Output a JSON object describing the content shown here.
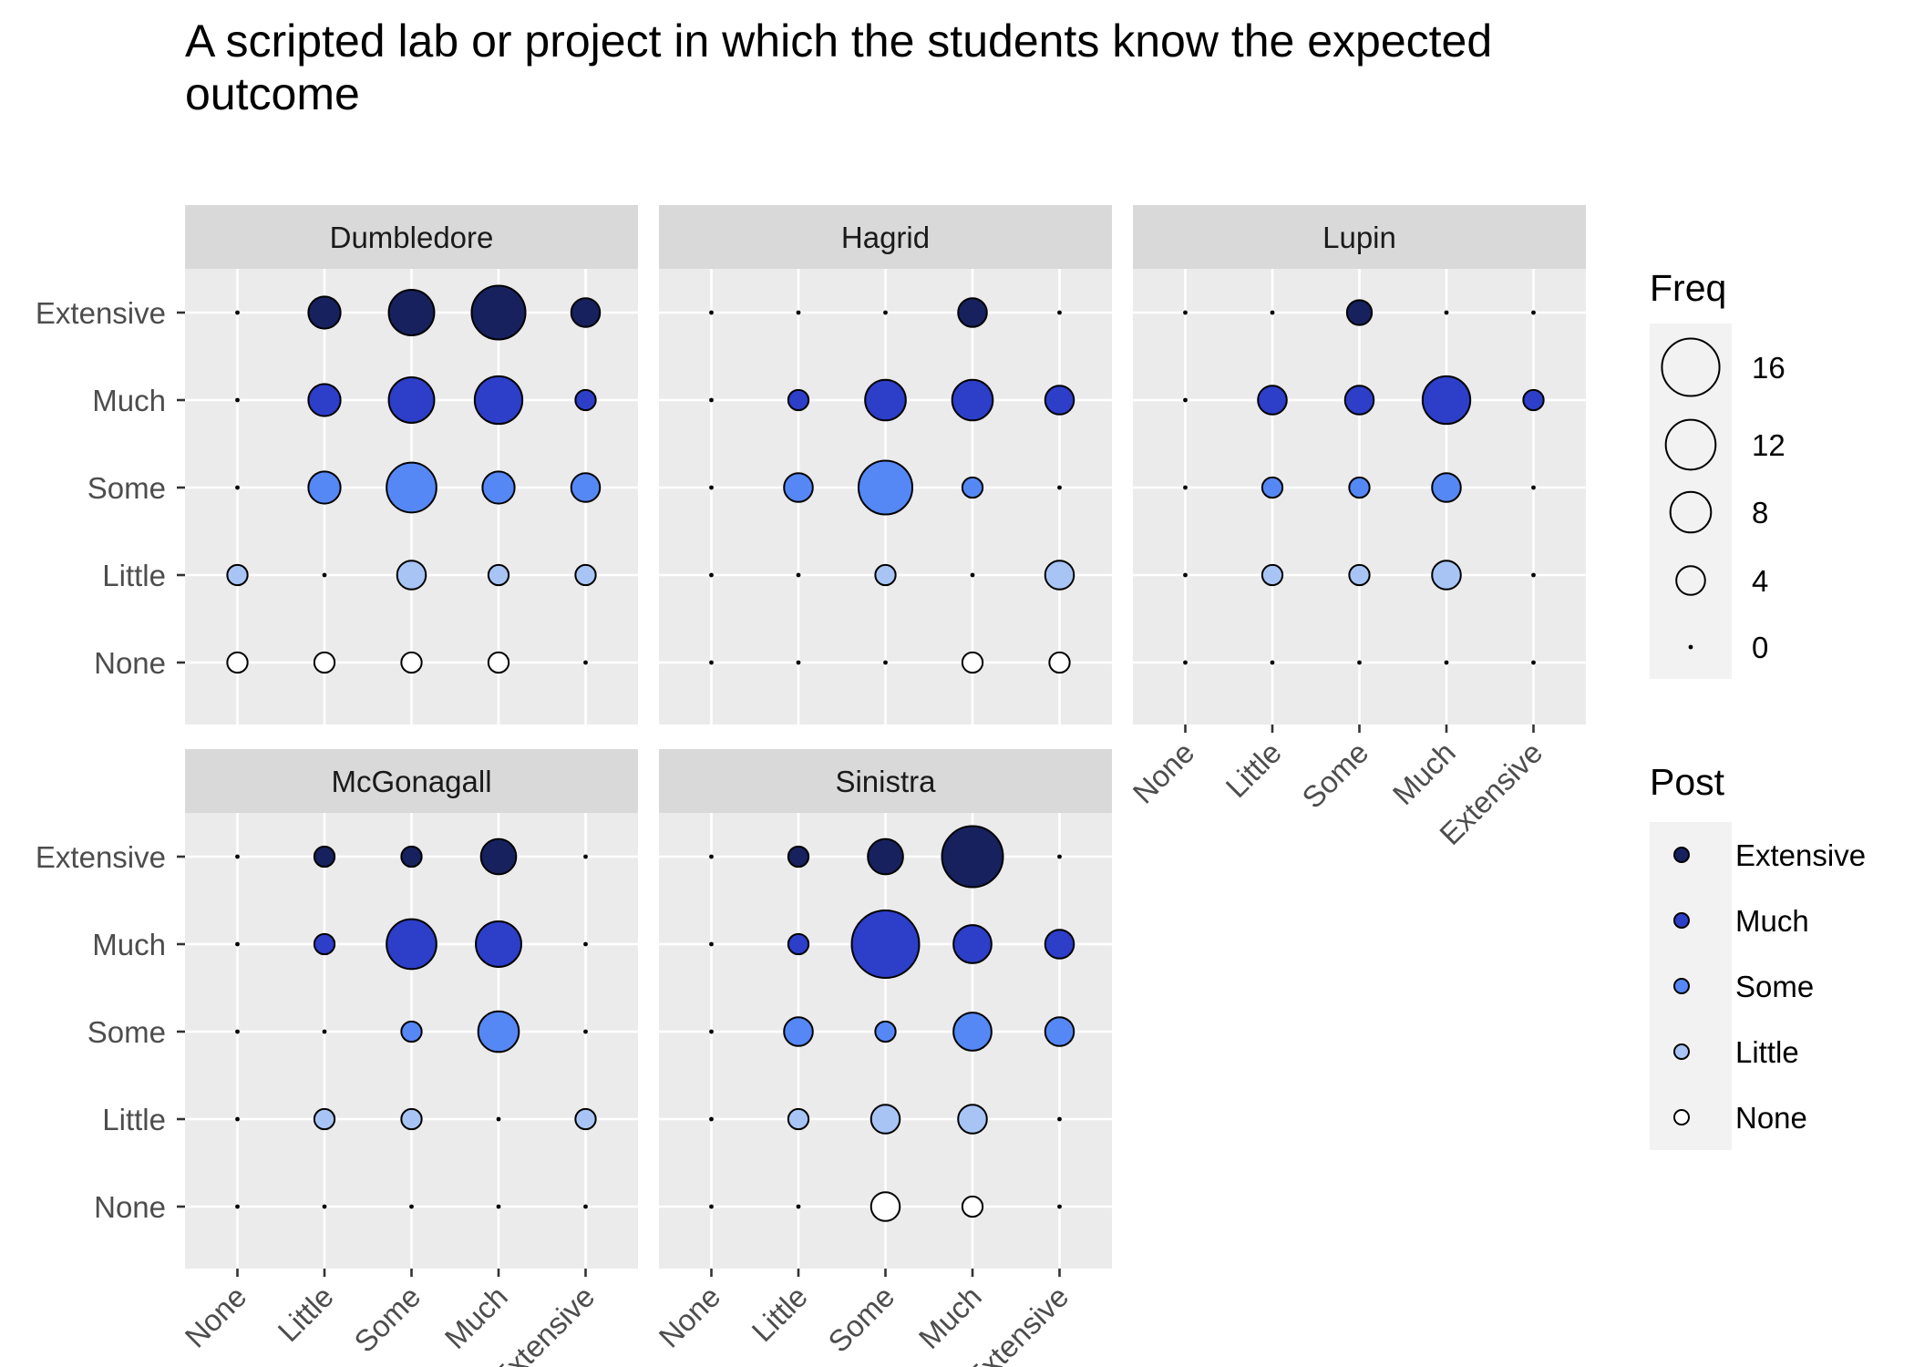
{
  "chart_data": {
    "type": "scatter",
    "title": "A scripted lab or project in which the students know the expected outcome",
    "title_lines": [
      "A scripted lab or project in which the students know the expected",
      "outcome"
    ],
    "levels": [
      "None",
      "Little",
      "Some",
      "Much",
      "Extensive"
    ],
    "xlabel": "",
    "ylabel": "",
    "size_variable": "Freq",
    "color_variable": "Post",
    "colors": {
      "None": "#ffffff",
      "Little": "#a8c4f5",
      "Some": "#5588f5",
      "Much": "#2d3ec8",
      "Extensive": "#17215e"
    },
    "grid": true,
    "legend_position": "right",
    "legends": {
      "size": {
        "title": "Freq",
        "breaks": [
          16,
          12,
          8,
          4,
          0
        ],
        "labels": [
          "16",
          "12",
          "8",
          "4",
          "0"
        ]
      },
      "color": {
        "title": "Post",
        "entries": [
          "Extensive",
          "Much",
          "Some",
          "Little",
          "None"
        ]
      }
    },
    "panels": [
      {
        "name": "Dumbledore",
        "points": [
          {
            "x": "None",
            "y": "Extensive",
            "freq": 0
          },
          {
            "x": "Little",
            "y": "Extensive",
            "freq": 5
          },
          {
            "x": "Some",
            "y": "Extensive",
            "freq": 10
          },
          {
            "x": "Much",
            "y": "Extensive",
            "freq": 14
          },
          {
            "x": "Extensive",
            "y": "Extensive",
            "freq": 4
          },
          {
            "x": "None",
            "y": "Much",
            "freq": 0
          },
          {
            "x": "Little",
            "y": "Much",
            "freq": 5
          },
          {
            "x": "Some",
            "y": "Much",
            "freq": 10
          },
          {
            "x": "Much",
            "y": "Much",
            "freq": 11
          },
          {
            "x": "Extensive",
            "y": "Much",
            "freq": 2
          },
          {
            "x": "None",
            "y": "Some",
            "freq": 0
          },
          {
            "x": "Little",
            "y": "Some",
            "freq": 5
          },
          {
            "x": "Some",
            "y": "Some",
            "freq": 12
          },
          {
            "x": "Much",
            "y": "Some",
            "freq": 5
          },
          {
            "x": "Extensive",
            "y": "Some",
            "freq": 4
          },
          {
            "x": "None",
            "y": "Little",
            "freq": 2
          },
          {
            "x": "Little",
            "y": "Little",
            "freq": 0
          },
          {
            "x": "Some",
            "y": "Little",
            "freq": 4
          },
          {
            "x": "Much",
            "y": "Little",
            "freq": 2
          },
          {
            "x": "Extensive",
            "y": "Little",
            "freq": 2
          },
          {
            "x": "None",
            "y": "None",
            "freq": 2
          },
          {
            "x": "Little",
            "y": "None",
            "freq": 2
          },
          {
            "x": "Some",
            "y": "None",
            "freq": 2
          },
          {
            "x": "Much",
            "y": "None",
            "freq": 2
          },
          {
            "x": "Extensive",
            "y": "None",
            "freq": 0
          }
        ]
      },
      {
        "name": "Hagrid",
        "points": [
          {
            "x": "None",
            "y": "Extensive",
            "freq": 0
          },
          {
            "x": "Little",
            "y": "Extensive",
            "freq": 0
          },
          {
            "x": "Some",
            "y": "Extensive",
            "freq": 0
          },
          {
            "x": "Much",
            "y": "Extensive",
            "freq": 4
          },
          {
            "x": "Extensive",
            "y": "Extensive",
            "freq": 0
          },
          {
            "x": "None",
            "y": "Much",
            "freq": 0
          },
          {
            "x": "Little",
            "y": "Much",
            "freq": 2
          },
          {
            "x": "Some",
            "y": "Much",
            "freq": 8
          },
          {
            "x": "Much",
            "y": "Much",
            "freq": 8
          },
          {
            "x": "Extensive",
            "y": "Much",
            "freq": 4
          },
          {
            "x": "None",
            "y": "Some",
            "freq": 0
          },
          {
            "x": "Little",
            "y": "Some",
            "freq": 4
          },
          {
            "x": "Some",
            "y": "Some",
            "freq": 14
          },
          {
            "x": "Much",
            "y": "Some",
            "freq": 2
          },
          {
            "x": "Extensive",
            "y": "Some",
            "freq": 0
          },
          {
            "x": "None",
            "y": "Little",
            "freq": 0
          },
          {
            "x": "Little",
            "y": "Little",
            "freq": 0
          },
          {
            "x": "Some",
            "y": "Little",
            "freq": 2
          },
          {
            "x": "Much",
            "y": "Little",
            "freq": 0
          },
          {
            "x": "Extensive",
            "y": "Little",
            "freq": 4
          },
          {
            "x": "None",
            "y": "None",
            "freq": 0
          },
          {
            "x": "Little",
            "y": "None",
            "freq": 0
          },
          {
            "x": "Some",
            "y": "None",
            "freq": 0
          },
          {
            "x": "Much",
            "y": "None",
            "freq": 2
          },
          {
            "x": "Extensive",
            "y": "None",
            "freq": 2
          }
        ]
      },
      {
        "name": "Lupin",
        "points": [
          {
            "x": "None",
            "y": "Extensive",
            "freq": 0
          },
          {
            "x": "Little",
            "y": "Extensive",
            "freq": 0
          },
          {
            "x": "Some",
            "y": "Extensive",
            "freq": 3
          },
          {
            "x": "Much",
            "y": "Extensive",
            "freq": 0
          },
          {
            "x": "Extensive",
            "y": "Extensive",
            "freq": 0
          },
          {
            "x": "None",
            "y": "Much",
            "freq": 0
          },
          {
            "x": "Little",
            "y": "Much",
            "freq": 4
          },
          {
            "x": "Some",
            "y": "Much",
            "freq": 4
          },
          {
            "x": "Much",
            "y": "Much",
            "freq": 11
          },
          {
            "x": "Extensive",
            "y": "Much",
            "freq": 2
          },
          {
            "x": "None",
            "y": "Some",
            "freq": 0
          },
          {
            "x": "Little",
            "y": "Some",
            "freq": 2
          },
          {
            "x": "Some",
            "y": "Some",
            "freq": 2
          },
          {
            "x": "Much",
            "y": "Some",
            "freq": 4
          },
          {
            "x": "Extensive",
            "y": "Some",
            "freq": 0
          },
          {
            "x": "None",
            "y": "Little",
            "freq": 0
          },
          {
            "x": "Little",
            "y": "Little",
            "freq": 2
          },
          {
            "x": "Some",
            "y": "Little",
            "freq": 2
          },
          {
            "x": "Much",
            "y": "Little",
            "freq": 4
          },
          {
            "x": "Extensive",
            "y": "Little",
            "freq": 0
          },
          {
            "x": "None",
            "y": "None",
            "freq": 0
          },
          {
            "x": "Little",
            "y": "None",
            "freq": 0
          },
          {
            "x": "Some",
            "y": "None",
            "freq": 0
          },
          {
            "x": "Much",
            "y": "None",
            "freq": 0
          },
          {
            "x": "Extensive",
            "y": "None",
            "freq": 0
          }
        ]
      },
      {
        "name": "McGonagall",
        "points": [
          {
            "x": "None",
            "y": "Extensive",
            "freq": 0
          },
          {
            "x": "Little",
            "y": "Extensive",
            "freq": 2
          },
          {
            "x": "Some",
            "y": "Extensive",
            "freq": 2
          },
          {
            "x": "Much",
            "y": "Extensive",
            "freq": 6
          },
          {
            "x": "Extensive",
            "y": "Extensive",
            "freq": 0
          },
          {
            "x": "None",
            "y": "Much",
            "freq": 0
          },
          {
            "x": "Little",
            "y": "Much",
            "freq": 2
          },
          {
            "x": "Some",
            "y": "Much",
            "freq": 12
          },
          {
            "x": "Much",
            "y": "Much",
            "freq": 10
          },
          {
            "x": "Extensive",
            "y": "Much",
            "freq": 0
          },
          {
            "x": "None",
            "y": "Some",
            "freq": 0
          },
          {
            "x": "Little",
            "y": "Some",
            "freq": 0
          },
          {
            "x": "Some",
            "y": "Some",
            "freq": 2
          },
          {
            "x": "Much",
            "y": "Some",
            "freq": 8
          },
          {
            "x": "Extensive",
            "y": "Some",
            "freq": 0
          },
          {
            "x": "None",
            "y": "Little",
            "freq": 0
          },
          {
            "x": "Little",
            "y": "Little",
            "freq": 2
          },
          {
            "x": "Some",
            "y": "Little",
            "freq": 2
          },
          {
            "x": "Much",
            "y": "Little",
            "freq": 0
          },
          {
            "x": "Extensive",
            "y": "Little",
            "freq": 2
          },
          {
            "x": "None",
            "y": "None",
            "freq": 0
          },
          {
            "x": "Little",
            "y": "None",
            "freq": 0
          },
          {
            "x": "Some",
            "y": "None",
            "freq": 0
          },
          {
            "x": "Much",
            "y": "None",
            "freq": 0
          },
          {
            "x": "Extensive",
            "y": "None",
            "freq": 0
          }
        ]
      },
      {
        "name": "Sinistra",
        "points": [
          {
            "x": "None",
            "y": "Extensive",
            "freq": 0
          },
          {
            "x": "Little",
            "y": "Extensive",
            "freq": 2
          },
          {
            "x": "Some",
            "y": "Extensive",
            "freq": 6
          },
          {
            "x": "Much",
            "y": "Extensive",
            "freq": 18
          },
          {
            "x": "Extensive",
            "y": "Extensive",
            "freq": 0
          },
          {
            "x": "None",
            "y": "Much",
            "freq": 0
          },
          {
            "x": "Little",
            "y": "Much",
            "freq": 2
          },
          {
            "x": "Some",
            "y": "Much",
            "freq": 22
          },
          {
            "x": "Much",
            "y": "Much",
            "freq": 7
          },
          {
            "x": "Extensive",
            "y": "Much",
            "freq": 4
          },
          {
            "x": "None",
            "y": "Some",
            "freq": 0
          },
          {
            "x": "Little",
            "y": "Some",
            "freq": 4
          },
          {
            "x": "Some",
            "y": "Some",
            "freq": 2
          },
          {
            "x": "Much",
            "y": "Some",
            "freq": 7
          },
          {
            "x": "Extensive",
            "y": "Some",
            "freq": 4
          },
          {
            "x": "None",
            "y": "Little",
            "freq": 0
          },
          {
            "x": "Little",
            "y": "Little",
            "freq": 2
          },
          {
            "x": "Some",
            "y": "Little",
            "freq": 4
          },
          {
            "x": "Much",
            "y": "Little",
            "freq": 4
          },
          {
            "x": "Extensive",
            "y": "Little",
            "freq": 0
          },
          {
            "x": "None",
            "y": "None",
            "freq": 0
          },
          {
            "x": "Little",
            "y": "None",
            "freq": 0
          },
          {
            "x": "Some",
            "y": "None",
            "freq": 4
          },
          {
            "x": "Much",
            "y": "None",
            "freq": 2
          },
          {
            "x": "Extensive",
            "y": "None",
            "freq": 0
          }
        ]
      }
    ]
  }
}
